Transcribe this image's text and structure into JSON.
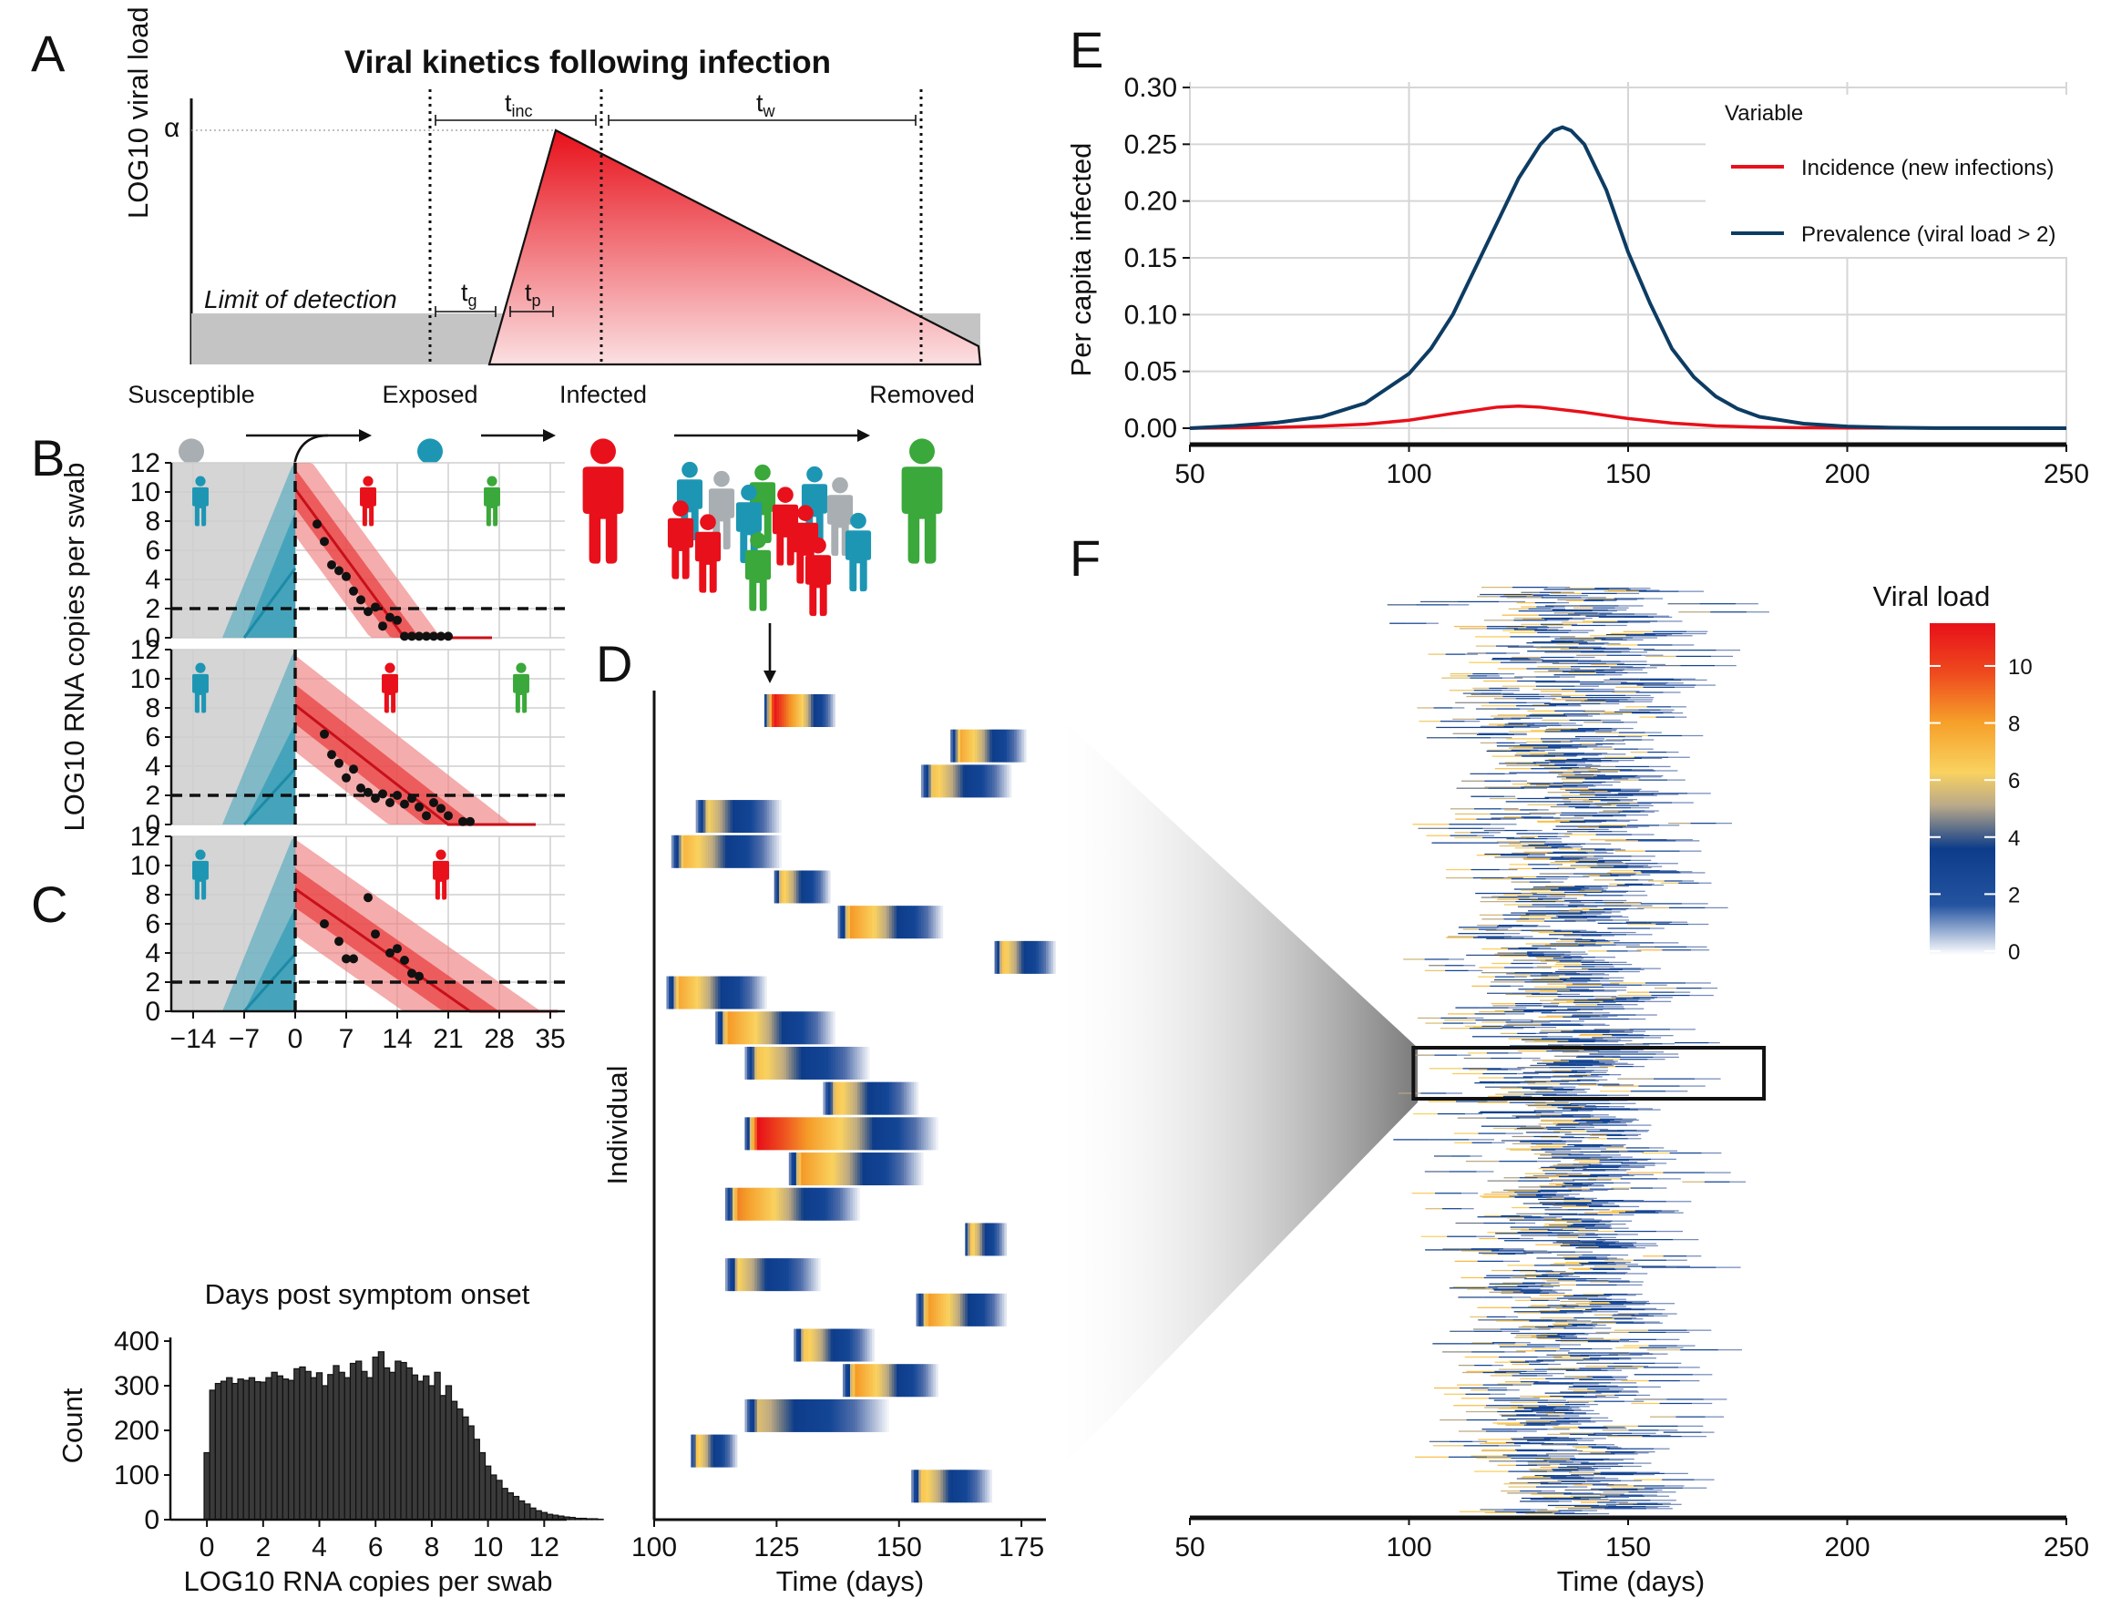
{
  "panels": {
    "a": "A",
    "b": "B",
    "c": "C",
    "d": "D",
    "e": "E",
    "f": "F"
  },
  "panel_a": {
    "title": "Viral kinetics following infection",
    "ylabel": "LOG10 viral load",
    "alpha": "α",
    "lod": "Limit of detection",
    "t_inc": "t",
    "t_inc_sub": "inc",
    "t_w": "t",
    "t_w_sub": "w",
    "t_g": "t",
    "t_g_sub": "g",
    "t_p": "t",
    "t_p_sub": "p",
    "stages": [
      "Susceptible",
      "Exposed",
      "Infected",
      "Removed"
    ],
    "colors": {
      "susceptible": "#a8aeb1",
      "exposed": "#1d96b4",
      "infected": "#e8101a",
      "removed": "#3aa83a"
    }
  },
  "chart_data": [
    {
      "id": "B",
      "type": "line",
      "xlabel": "Days post symptom onset",
      "ylabel": "LOG10 RNA copies per swab",
      "xlim": [
        -17,
        37
      ],
      "ylim": [
        0,
        12
      ],
      "xticks": [
        -14,
        -7,
        0,
        7,
        14,
        21,
        28,
        35
      ],
      "xtick_labels": [
        "−14",
        "−7",
        "0",
        "7",
        "14",
        "21",
        "28",
        "35"
      ],
      "yticks": [
        0,
        2,
        4,
        6,
        8,
        10,
        12
      ],
      "limit_of_detection": 2,
      "pre_symptom_shaded": [
        -17,
        0
      ],
      "subpanels": [
        {
          "points": [
            [
              3,
              7.8
            ],
            [
              4,
              6.6
            ],
            [
              5,
              5
            ],
            [
              6,
              4.6
            ],
            [
              7,
              4.2
            ],
            [
              8,
              3.2
            ],
            [
              9,
              2.6
            ],
            [
              10,
              1.8
            ],
            [
              11,
              2.1
            ],
            [
              12,
              0.8
            ],
            [
              13,
              1.4
            ],
            [
              14,
              1.2
            ],
            [
              15,
              0.1
            ],
            [
              16,
              0.1
            ],
            [
              17,
              0.1
            ],
            [
              18,
              0.1
            ],
            [
              19,
              0.1
            ],
            [
              20,
              0.1
            ],
            [
              21,
              0.1
            ]
          ],
          "peak": 10.2,
          "peak_day": -0.5,
          "clearance_day": 15
        },
        {
          "points": [
            [
              4,
              6.2
            ],
            [
              5,
              4.8
            ],
            [
              6,
              4.2
            ],
            [
              7,
              3.2
            ],
            [
              8,
              3.8
            ],
            [
              9,
              2.5
            ],
            [
              10,
              2.2
            ],
            [
              11,
              1.8
            ],
            [
              12,
              2.1
            ],
            [
              13,
              1.5
            ],
            [
              14,
              2.0
            ],
            [
              15,
              1.4
            ],
            [
              16,
              1.8
            ],
            [
              17,
              1.2
            ],
            [
              18,
              0.6
            ],
            [
              19,
              1.5
            ],
            [
              20,
              1.1
            ],
            [
              21,
              0.6
            ],
            [
              23,
              0.2
            ],
            [
              24,
              0.2
            ]
          ],
          "peak": 8.2,
          "peak_day": -2,
          "clearance_day": 21
        },
        {
          "points": [
            [
              4,
              6.0
            ],
            [
              6,
              4.8
            ],
            [
              7,
              3.6
            ],
            [
              8,
              3.6
            ],
            [
              10,
              7.8
            ],
            [
              11,
              5.3
            ],
            [
              13,
              4.0
            ],
            [
              14,
              4.3
            ],
            [
              15,
              3.5
            ],
            [
              16,
              2.6
            ],
            [
              17,
              2.4
            ]
          ],
          "peak": 8.4,
          "peak_day": -2,
          "clearance_day": 24
        }
      ]
    },
    {
      "id": "C",
      "type": "bar",
      "xlabel": "LOG10 RNA copies per swab",
      "ylabel": "Count",
      "xlim": [
        -1.3,
        12.8
      ],
      "ylim": [
        0,
        400
      ],
      "xticks": [
        0,
        2,
        4,
        6,
        8,
        10,
        12
      ],
      "yticks": [
        0,
        100,
        200,
        300,
        400
      ],
      "bin_width": 0.2,
      "bin_start": -0.1,
      "values": [
        150,
        290,
        305,
        310,
        318,
        305,
        315,
        312,
        318,
        309,
        308,
        318,
        330,
        322,
        315,
        312,
        338,
        342,
        332,
        318,
        329,
        300,
        325,
        345,
        330,
        318,
        350,
        355,
        332,
        318,
        364,
        376,
        340,
        330,
        355,
        352,
        340,
        324,
        310,
        322,
        300,
        330,
        278,
        300,
        265,
        248,
        230,
        210,
        180,
        150,
        120,
        100,
        88,
        70,
        60,
        52,
        42,
        35,
        26,
        20,
        16,
        12,
        10,
        8,
        6,
        5,
        3,
        3,
        2,
        2,
        1
      ]
    },
    {
      "id": "D",
      "type": "heatmap",
      "xlabel": "Time (days)",
      "ylabel": "Individual",
      "xlim": [
        100,
        180
      ],
      "xticks": [
        100,
        125,
        150,
        175
      ],
      "rows": [
        {
          "start": 122,
          "peak": 11.0,
          "duration": 15
        },
        {
          "start": 160,
          "peak": 7.5,
          "duration": 16
        },
        {
          "start": 154,
          "peak": 6.5,
          "duration": 19
        },
        {
          "start": 108,
          "peak": 6.0,
          "duration": 18
        },
        {
          "start": 103,
          "peak": 7.0,
          "duration": 23
        },
        {
          "start": 124,
          "peak": 6.5,
          "duration": 12
        },
        {
          "start": 137,
          "peak": 8.0,
          "duration": 22
        },
        {
          "start": 169,
          "peak": 6.5,
          "duration": 13
        },
        {
          "start": 102,
          "peak": 7.5,
          "duration": 21
        },
        {
          "start": 112,
          "peak": 8.0,
          "duration": 25
        },
        {
          "start": 118,
          "peak": 6.5,
          "duration": 26
        },
        {
          "start": 134,
          "peak": 6.5,
          "duration": 20
        },
        {
          "start": 118,
          "peak": 11.0,
          "duration": 40
        },
        {
          "start": 127,
          "peak": 8.0,
          "duration": 28
        },
        {
          "start": 114,
          "peak": 8.5,
          "duration": 28
        },
        {
          "start": 163,
          "peak": 6.5,
          "duration": 9
        },
        {
          "start": 114,
          "peak": 6.0,
          "duration": 20
        },
        {
          "start": 153,
          "peak": 8.0,
          "duration": 19
        },
        {
          "start": 128,
          "peak": 6.5,
          "duration": 17
        },
        {
          "start": 138,
          "peak": 8.0,
          "duration": 20
        },
        {
          "start": 118,
          "peak": 5.5,
          "duration": 30
        },
        {
          "start": 107,
          "peak": 6.5,
          "duration": 10
        },
        {
          "start": 152,
          "peak": 6.5,
          "duration": 17
        }
      ]
    },
    {
      "id": "E",
      "type": "line",
      "ylabel": "Per capita infected",
      "xlim": [
        50,
        250
      ],
      "ylim": [
        0,
        0.3
      ],
      "xticks": [
        50,
        100,
        150,
        200,
        250
      ],
      "yticks": [
        0,
        0.05,
        0.1,
        0.15,
        0.2,
        0.25,
        0.3
      ],
      "ytick_labels": [
        "0.00",
        "0.05",
        "0.10",
        "0.15",
        "0.20",
        "0.25",
        "0.30"
      ],
      "legend_title": "Variable",
      "legend_position": "top-right",
      "series": [
        {
          "name": "Incidence (new infections)",
          "color": "#e8101a",
          "x": [
            50,
            60,
            70,
            80,
            90,
            100,
            110,
            120,
            125,
            130,
            140,
            150,
            160,
            170,
            180,
            190,
            200,
            250
          ],
          "y": [
            0,
            0.0003,
            0.0008,
            0.0018,
            0.0035,
            0.007,
            0.013,
            0.0185,
            0.0195,
            0.0185,
            0.014,
            0.0085,
            0.0045,
            0.002,
            0.0009,
            0.0004,
            0.0002,
            0
          ]
        },
        {
          "name": "Prevalence (viral load > 2)",
          "color": "#0d3c63",
          "x": [
            50,
            60,
            70,
            80,
            90,
            100,
            105,
            110,
            115,
            120,
            125,
            130,
            133,
            135,
            137,
            140,
            145,
            150,
            155,
            160,
            165,
            170,
            175,
            180,
            190,
            200,
            210,
            220,
            250
          ],
          "y": [
            0,
            0.002,
            0.005,
            0.01,
            0.022,
            0.048,
            0.07,
            0.1,
            0.14,
            0.18,
            0.22,
            0.25,
            0.262,
            0.265,
            0.262,
            0.25,
            0.21,
            0.155,
            0.11,
            0.07,
            0.045,
            0.028,
            0.017,
            0.01,
            0.004,
            0.0015,
            0.0005,
            0.0001,
            0
          ]
        }
      ]
    },
    {
      "id": "F",
      "type": "heatmap",
      "xlabel": "Time (days)",
      "xlim": [
        50,
        250
      ],
      "xticks": [
        50,
        100,
        150,
        200,
        250
      ],
      "legend_title": "Viral load",
      "legend_ticks": [
        0,
        2,
        4,
        6,
        8,
        10
      ],
      "color_scale": [
        "#ffffff",
        "#1a4f9a",
        "#0d3c8a",
        "#f8d060",
        "#f59f2a",
        "#ee5a1e",
        "#e8101a"
      ],
      "zoom_box_x": [
        101,
        181
      ]
    }
  ]
}
